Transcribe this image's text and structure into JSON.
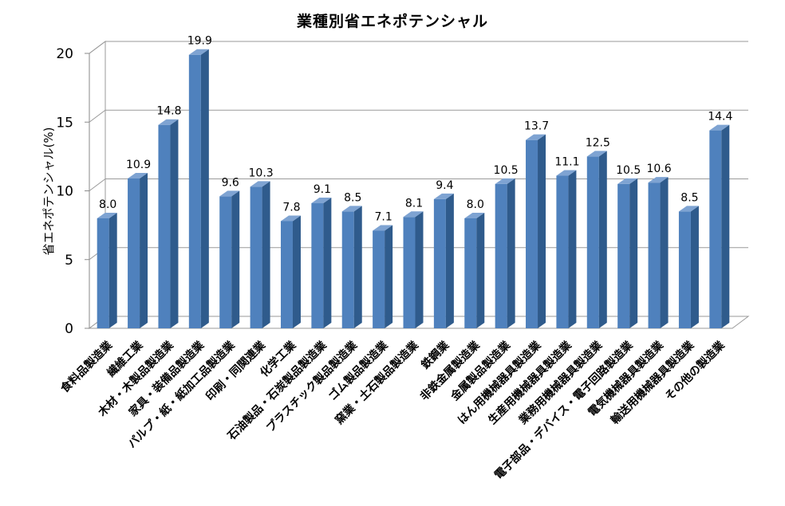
{
  "chart_data": {
    "type": "bar",
    "title": "業種別省エネポテンシャル",
    "xlabel": "",
    "ylabel": "省エネポテンシャル(%)",
    "ylim": [
      0,
      20
    ],
    "yticks": [
      0,
      5,
      10,
      15,
      20
    ],
    "grid": true,
    "bar_color": "#4f81bd",
    "categories": [
      "食料品製造業",
      "繊維工業",
      "木材・木製品製造業",
      "家具・装備品製造業",
      "パルプ・紙・紙加工品製造業",
      "印刷・同関連業",
      "化学工業",
      "石油製品・石炭製品製造業",
      "プラスチック製品製造業",
      "ゴム製品製造業",
      "窯業・土石製品製造業",
      "鉄鋼業",
      "非鉄金属製造業",
      "金属製品製造業",
      "はん用機械器具製造業",
      "生産用機械器具製造業",
      "業務用機械器具製造業",
      "電子部品・デバイス・電子回路製造業",
      "電気機械器具製造業",
      "輸送用機械器具製造業",
      "その他の製造業"
    ],
    "values": [
      8.0,
      10.9,
      14.8,
      19.9,
      9.6,
      10.3,
      7.8,
      9.1,
      8.5,
      7.1,
      8.1,
      9.4,
      8.0,
      10.5,
      13.7,
      11.1,
      12.5,
      10.5,
      10.6,
      8.5,
      14.4
    ],
    "data_labels": [
      "8.0",
      "10.9",
      "14.8",
      "19.9",
      "9.6",
      "10.3",
      "7.8",
      "9.1",
      "8.5",
      "7.1",
      "8.1",
      "9.4",
      "8.0",
      "10.5",
      "13.7",
      "11.1",
      "12.5",
      "10.5",
      "10.6",
      "8.5",
      "14.4"
    ]
  }
}
